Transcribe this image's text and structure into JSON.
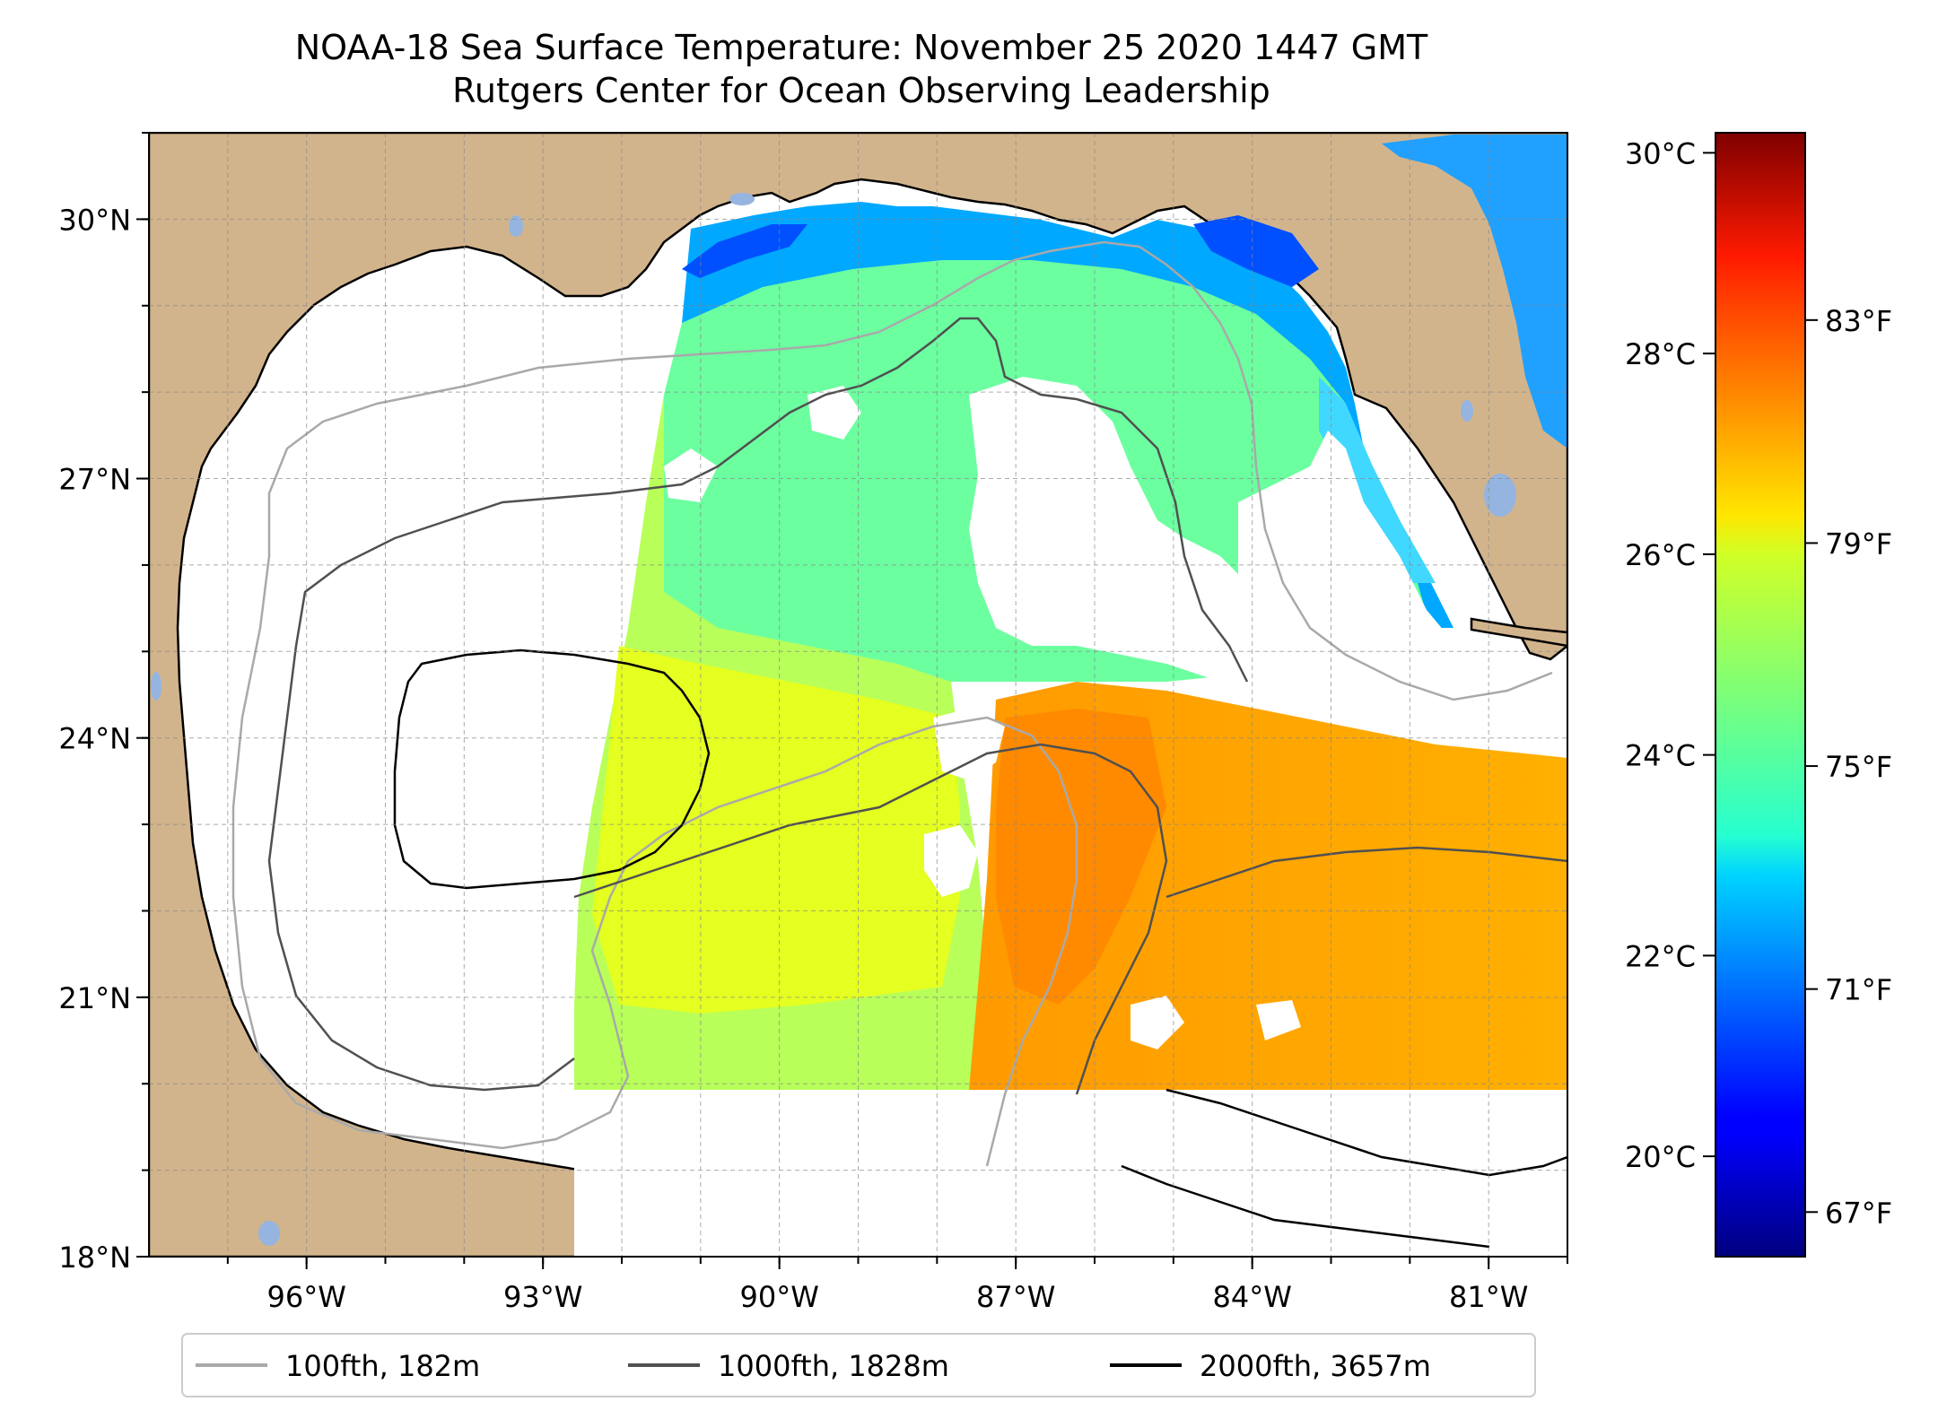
{
  "title": "NOAA-18 Sea Surface Temperature: November 25 2020 1447 GMT",
  "subtitle": "Rutgers Center for Ocean Observing Leadership",
  "map": {
    "lon_range": [
      -98.0,
      -80.0
    ],
    "lat_range": [
      18.0,
      31.0
    ],
    "lon_ticks": [
      {
        "value": -96,
        "label": "96°W"
      },
      {
        "value": -93,
        "label": "93°W"
      },
      {
        "value": -90,
        "label": "90°W"
      },
      {
        "value": -87,
        "label": "87°W"
      },
      {
        "value": -84,
        "label": "84°W"
      },
      {
        "value": -81,
        "label": "81°W"
      }
    ],
    "lat_ticks": [
      {
        "value": 18,
        "label": "18°N"
      },
      {
        "value": 21,
        "label": "21°N"
      },
      {
        "value": 24,
        "label": "24°N"
      },
      {
        "value": 27,
        "label": "27°N"
      },
      {
        "value": 30,
        "label": "30°N"
      }
    ],
    "gridlines": true,
    "land_color": "#d2b48c",
    "lake_color": "#95b4e0",
    "no_data_color": "#ffffff"
  },
  "colorbar": {
    "colormap": "jet",
    "celsius_range": [
      19.0,
      30.2
    ],
    "celsius_ticks": [
      {
        "value": 20,
        "label": "20°C"
      },
      {
        "value": 22,
        "label": "22°C"
      },
      {
        "value": 24,
        "label": "24°C"
      },
      {
        "value": 26,
        "label": "26°C"
      },
      {
        "value": 28,
        "label": "28°C"
      },
      {
        "value": 30,
        "label": "30°C"
      }
    ],
    "fahrenheit_ticks": [
      {
        "value": 67,
        "label": "67°F"
      },
      {
        "value": 71,
        "label": "71°F"
      },
      {
        "value": 75,
        "label": "75°F"
      },
      {
        "value": 79,
        "label": "79°F"
      },
      {
        "value": 83,
        "label": "83°F"
      }
    ]
  },
  "legend": {
    "placement": "bottom",
    "items": [
      {
        "label": "100fth, 182m",
        "color": "#a9a9a9"
      },
      {
        "label": "1000fth, 1828m",
        "color": "#505050"
      },
      {
        "label": "2000fth, 3657m",
        "color": "#000000"
      }
    ]
  }
}
